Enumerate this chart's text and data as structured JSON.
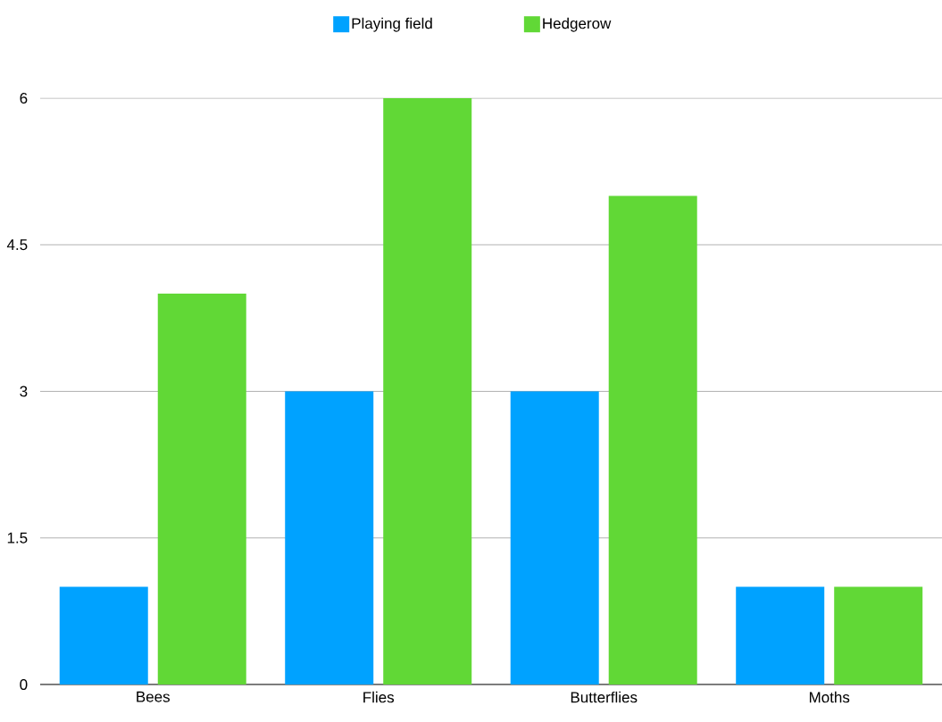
{
  "chart_data": {
    "type": "bar",
    "categories": [
      "Bees",
      "Flies",
      "Butterflies",
      "Moths"
    ],
    "series": [
      {
        "name": "Playing field",
        "color": "#00a2ff",
        "values": [
          1,
          3,
          3,
          1
        ]
      },
      {
        "name": "Hedgerow",
        "color": "#61d836",
        "values": [
          4,
          6,
          5,
          1
        ]
      }
    ],
    "ylim": [
      0,
      6
    ],
    "yticks": [
      0,
      1.5,
      3,
      4.5,
      6
    ],
    "grid": "y",
    "legend": "top"
  }
}
